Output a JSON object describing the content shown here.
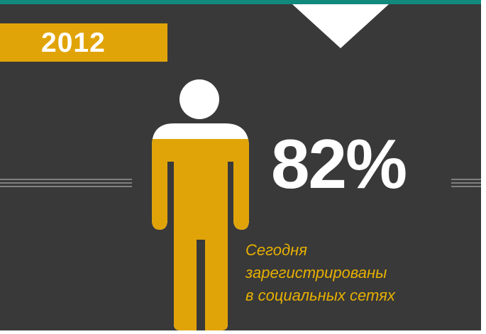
{
  "theme": {
    "background": "#393939",
    "accent": "#e1a408",
    "top_bar": "#12897d",
    "text": "#ffffff"
  },
  "year": "2012",
  "stat": {
    "value": "82%",
    "fill_fraction": 0.82
  },
  "caption": {
    "line1": "Сегодня",
    "line2": "зарегистрированы",
    "line3": "в социальных сетях"
  },
  "figure_icon": "person-icon"
}
